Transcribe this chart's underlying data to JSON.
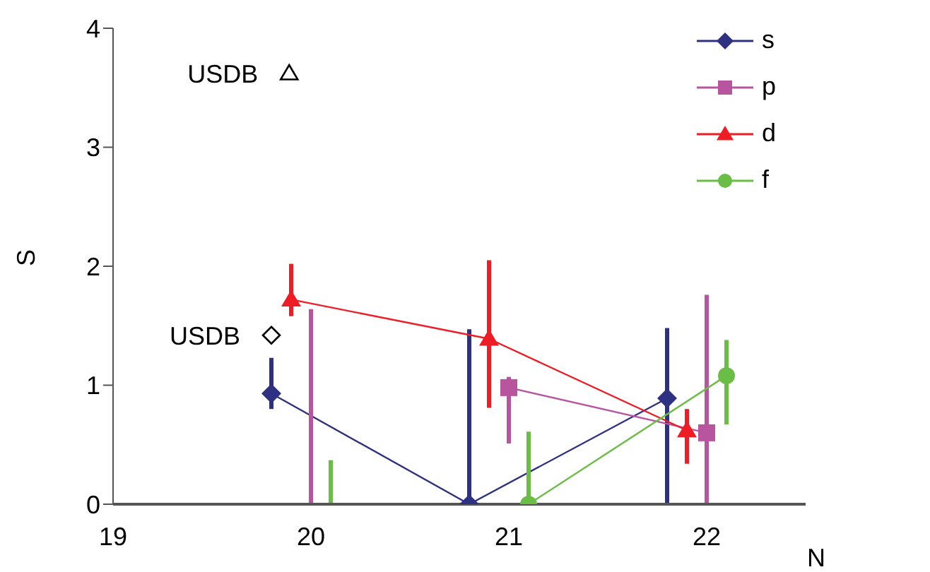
{
  "chart_data": {
    "type": "line",
    "xlabel": "N",
    "ylabel": "S",
    "xlim": [
      19,
      22.5
    ],
    "xticks": [
      19,
      20,
      21,
      22
    ],
    "ylim": [
      0,
      4
    ],
    "yticks": [
      0,
      1,
      2,
      3,
      4
    ],
    "grid": false,
    "legend": "top right",
    "series": [
      {
        "name": "s",
        "color": "#2e3182",
        "marker": "diamond",
        "x": [
          19.8,
          20.8,
          21.8
        ],
        "values": [
          0.93,
          0,
          0.89
        ],
        "errors": [
          [
            0.8,
            1.23
          ],
          [
            0,
            1.47
          ],
          [
            0,
            1.48
          ]
        ]
      },
      {
        "name": "p",
        "color": "#b8559f",
        "marker": "square",
        "x": [
          21.0,
          22.0
        ],
        "values": [
          0.98,
          0.6
        ],
        "errors": [
          [
            0.51,
            1.07
          ],
          [
            0,
            1.76
          ]
        ]
      },
      {
        "color": "#b8559f",
        "marker": "none",
        "x": [
          20.0,
          20.0
        ],
        "values": [
          0,
          1.64
        ]
      },
      {
        "name": "d",
        "color": "#ee1c25",
        "marker": "triangle",
        "x": [
          19.9,
          20.9,
          21.9
        ],
        "values": [
          1.72,
          1.39,
          0.62
        ],
        "errors": [
          [
            1.58,
            2.02
          ],
          [
            0.81,
            2.05
          ],
          [
            0.34,
            0.8
          ]
        ]
      },
      {
        "name": "f",
        "color": "#6abd45",
        "marker": "circle",
        "x": [
          21.1,
          22.1
        ],
        "values": [
          0,
          1.08
        ],
        "errors": [
          [
            0,
            0.61
          ],
          [
            0.67,
            1.38
          ]
        ]
      },
      {
        "color": "#6abd45",
        "marker": "none",
        "x": [
          20.1,
          20.1
        ],
        "values": [
          0,
          0.37
        ]
      },
      {
        "type": "scatter",
        "color": "#000000",
        "marker": "triangle",
        "x": [
          19.89
        ],
        "values": [
          3.62
        ]
      },
      {
        "type": "scatter",
        "color": "#000000",
        "marker": "diamond",
        "x": [
          19.8
        ],
        "values": [
          1.42
        ]
      }
    ],
    "annotations": [
      {
        "text": "USDB",
        "x": 19.89,
        "y": 3.62
      },
      {
        "text": "USDB",
        "x": 19.8,
        "y": 1.42
      }
    ]
  }
}
